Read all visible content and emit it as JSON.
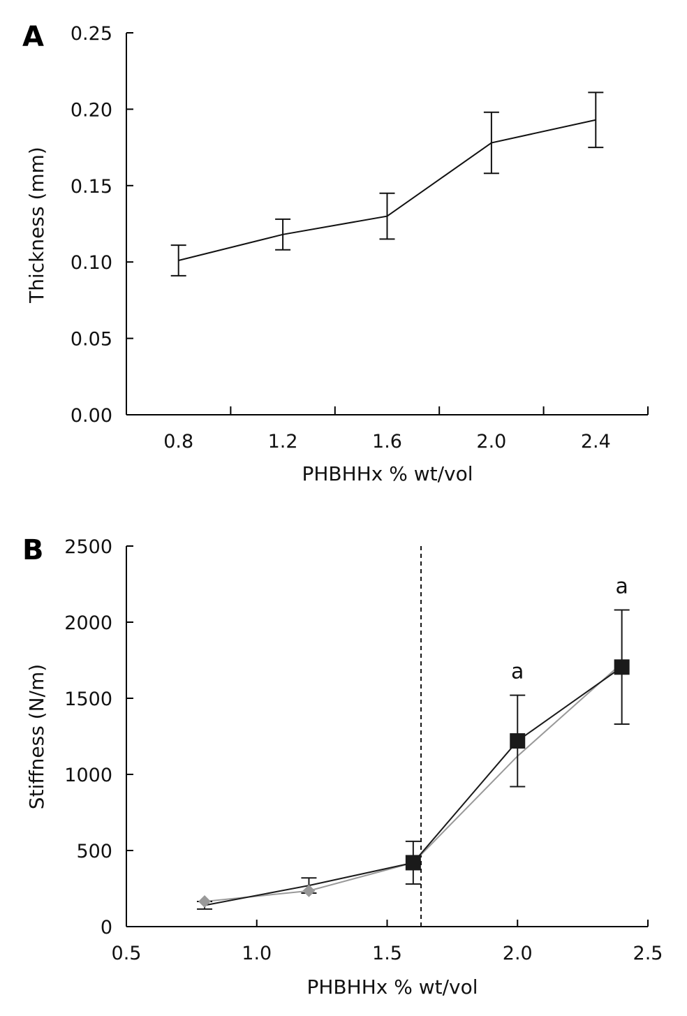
{
  "chart_data": [
    {
      "panel_label": "A",
      "type": "line",
      "xlabel": "PHBHHx % wt/vol",
      "ylabel": "Thickness (mm)",
      "xlim": [
        0.6,
        2.6
      ],
      "ylim": [
        0,
        0.25
      ],
      "x_ticks": [
        0.8,
        1.2,
        1.6,
        2.0,
        2.4
      ],
      "x_tick_labels": [
        "0.8",
        "1.2",
        "1.6",
        "2.0",
        "2.4"
      ],
      "x_minor_ticks": [
        1.0,
        1.4,
        1.8,
        2.2,
        2.6
      ],
      "y_ticks": [
        0,
        0.05,
        0.1,
        0.15,
        0.2,
        0.25
      ],
      "y_tick_labels": [
        "0.00",
        "0.05",
        "0.10",
        "0.15",
        "0.20",
        "0.25"
      ],
      "grid": false,
      "series": [
        {
          "color": "#111111",
          "x": [
            0.8,
            1.2,
            1.6,
            2.0,
            2.4
          ],
          "values": [
            0.101,
            0.118,
            0.13,
            0.178,
            0.193
          ],
          "error": [
            0.01,
            0.01,
            0.015,
            0.02,
            0.018
          ]
        }
      ]
    },
    {
      "panel_label": "B",
      "type": "line",
      "xlabel": "PHBHHx % wt/vol",
      "ylabel": "Stiffness (N/m)",
      "xlim": [
        0.5,
        2.5
      ],
      "ylim": [
        0,
        2500
      ],
      "x_ticks": [
        0.5,
        1.0,
        1.5,
        2.0,
        2.5
      ],
      "x_tick_labels": [
        "0.5",
        "1.0",
        "1.5",
        "2.0",
        "2.5"
      ],
      "y_ticks": [
        0,
        500,
        1000,
        1500,
        2000,
        2500
      ],
      "y_tick_labels": [
        "0",
        "500",
        "1000",
        "1500",
        "2000",
        "2500"
      ],
      "grid": false,
      "vertical_reference_line_x": 1.63,
      "series": [
        {
          "color": "#999999",
          "marker": "diamond",
          "x": [
            0.8,
            1.2,
            1.6,
            2.0,
            2.4
          ],
          "values": [
            165,
            235,
            420,
            1120,
            1730
          ]
        },
        {
          "color": "#1a1a1a",
          "marker": "square",
          "x": [
            0.8,
            1.2,
            1.6,
            2.0,
            2.4
          ],
          "values": [
            140,
            270,
            420,
            1220,
            1705
          ],
          "error": [
            25,
            50,
            140,
            300,
            375
          ]
        }
      ],
      "annotations": [
        {
          "x": 2.0,
          "y": 1630,
          "text": "a"
        },
        {
          "x": 2.4,
          "y": 2190,
          "text": "a"
        }
      ]
    }
  ]
}
